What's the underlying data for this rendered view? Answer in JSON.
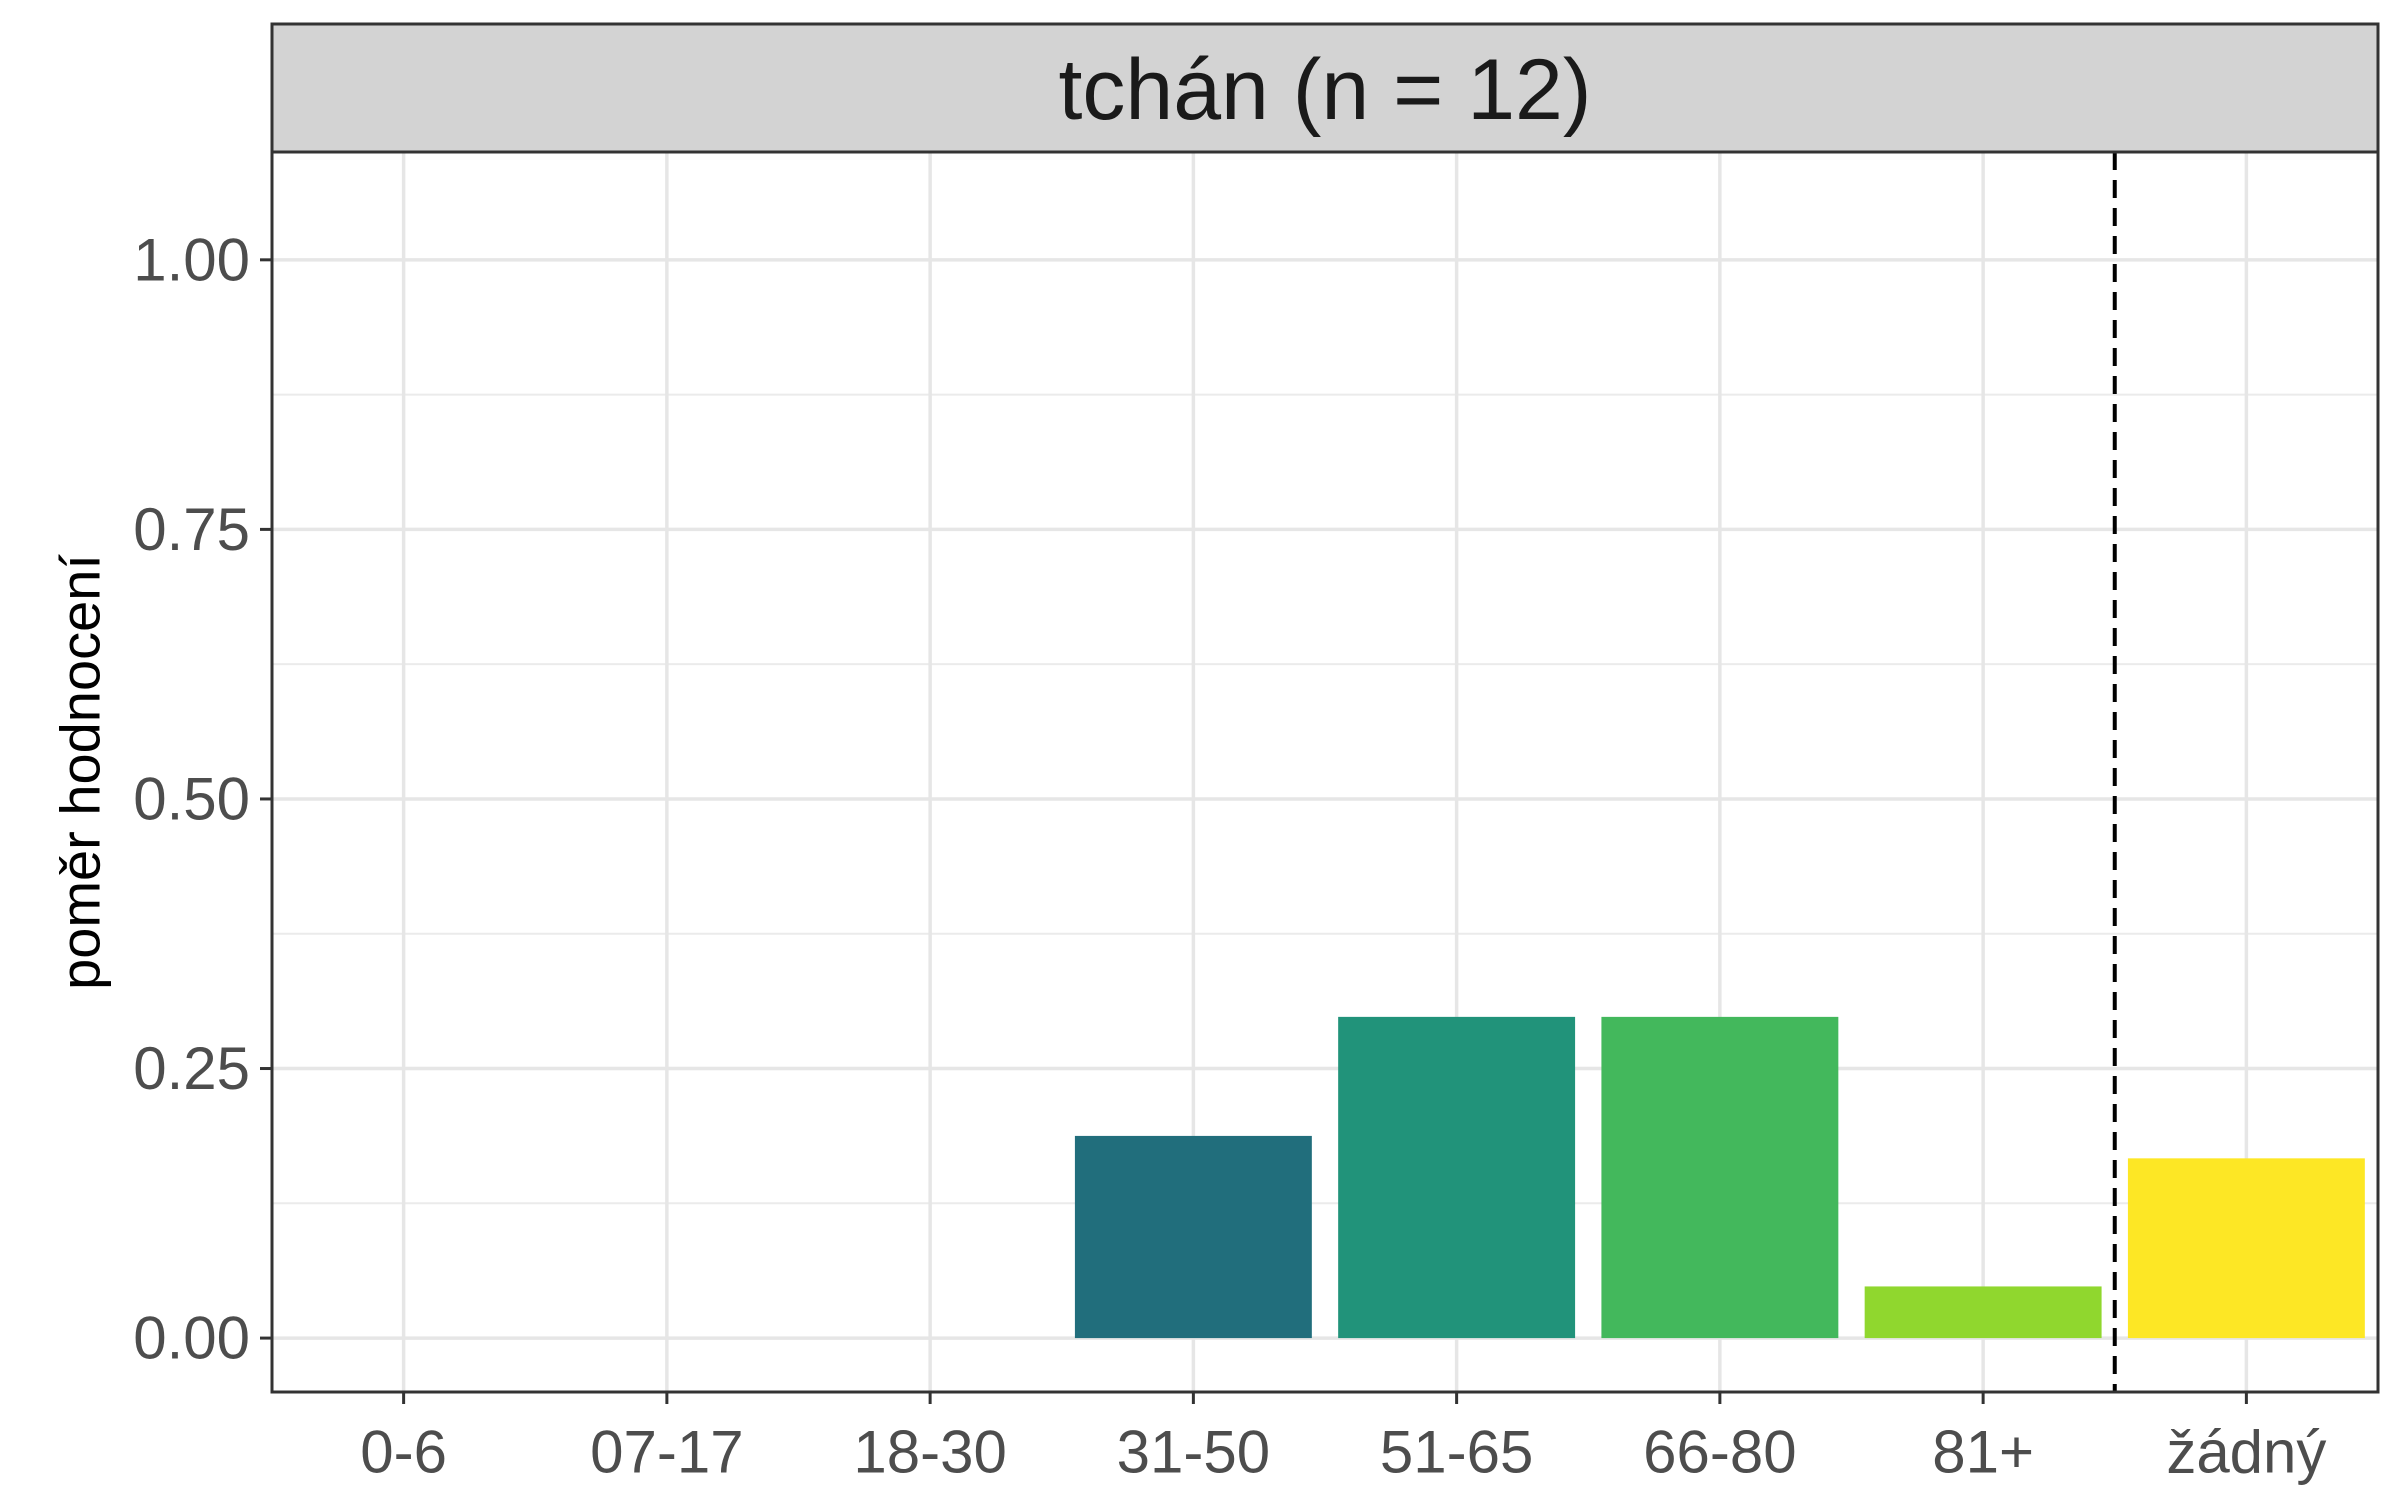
{
  "chart_data": {
    "type": "bar",
    "facet_title": "tchán (n = 12)",
    "ylabel": "poměr hodnocení",
    "xlabel": "",
    "categories": [
      "0-6",
      "07-17",
      "18-30",
      "31-50",
      "51-65",
      "66-80",
      "81+",
      "žádný"
    ],
    "values": [
      0,
      0,
      0,
      0.1875,
      0.2979,
      0.2979,
      0.0479,
      0.1667
    ],
    "colors": [
      "#440154",
      "#46337E",
      "#365C8D",
      "#216E7C",
      "#21937A",
      "#43B85C",
      "#90D72E",
      "#FDE725"
    ],
    "ylim": [
      -0.05,
      1.1
    ],
    "yticks": [
      0,
      0.25,
      0.5,
      0.75,
      1.0
    ],
    "ytick_labels": [
      "0.00",
      "0.25",
      "0.50",
      "0.75",
      "1.00"
    ],
    "reference_line": {
      "style": "dashed",
      "between": [
        "81+",
        "žádný"
      ]
    },
    "grid": true
  }
}
